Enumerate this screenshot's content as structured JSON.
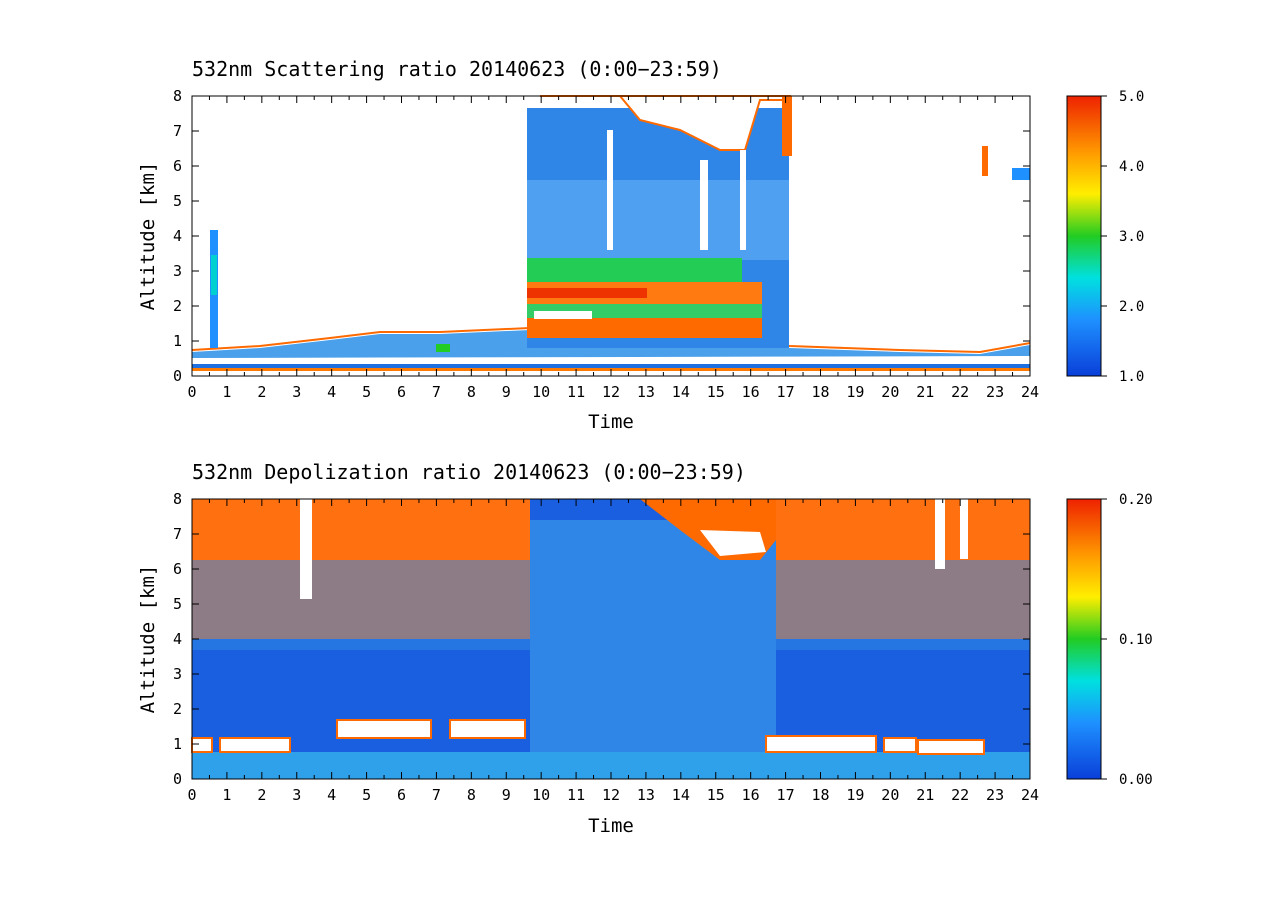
{
  "chart_data": [
    {
      "type": "heatmap",
      "title": "532nm Scattering ratio  20140623 (0:00−23:59)",
      "xlabel": "Time",
      "ylabel": "Altitude [km]",
      "xlim": [
        0,
        24
      ],
      "ylim": [
        0,
        8
      ],
      "x_ticks": [
        "0",
        "1",
        "2",
        "3",
        "4",
        "5",
        "6",
        "7",
        "8",
        "9",
        "10",
        "11",
        "12",
        "13",
        "14",
        "15",
        "16",
        "17",
        "18",
        "19",
        "20",
        "21",
        "22",
        "23",
        "24"
      ],
      "y_ticks": [
        "0",
        "1",
        "2",
        "3",
        "4",
        "5",
        "6",
        "7",
        "8"
      ],
      "colorbar": {
        "range": [
          1.0,
          5.0
        ],
        "ticks": [
          "1.0",
          "2.0",
          "3.0",
          "4.0",
          "5.0"
        ]
      }
    },
    {
      "type": "heatmap",
      "title": "532nm Depolization ratio  20140623 (0:00−23:59)",
      "xlabel": "Time",
      "ylabel": "Altitude [km]",
      "xlim": [
        0,
        24
      ],
      "ylim": [
        0,
        8
      ],
      "x_ticks": [
        "0",
        "1",
        "2",
        "3",
        "4",
        "5",
        "6",
        "7",
        "8",
        "9",
        "10",
        "11",
        "12",
        "13",
        "14",
        "15",
        "16",
        "17",
        "18",
        "19",
        "20",
        "21",
        "22",
        "23",
        "24"
      ],
      "y_ticks": [
        "0",
        "1",
        "2",
        "3",
        "4",
        "5",
        "6",
        "7",
        "8"
      ],
      "colorbar": {
        "range": [
          0.0,
          0.2
        ],
        "ticks": [
          "0.00",
          "0.10",
          "0.20"
        ]
      }
    }
  ]
}
